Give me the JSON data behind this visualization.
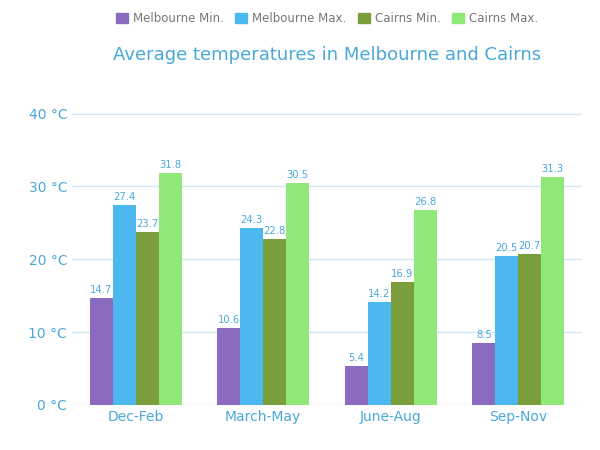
{
  "title": "Average temperatures in Melbourne and Cairns",
  "title_color": "#4aa8d8",
  "categories": [
    "Dec-Feb",
    "March-May",
    "June-Aug",
    "Sep-Nov"
  ],
  "series": [
    {
      "label": "Melbourne Min.",
      "color": "#8a6bbf",
      "values": [
        14.7,
        10.6,
        5.4,
        8.5
      ]
    },
    {
      "label": "Melbourne Max.",
      "color": "#4db8f0",
      "values": [
        27.4,
        24.3,
        14.2,
        20.5
      ]
    },
    {
      "label": "Cairns Min.",
      "color": "#7a9e3b",
      "values": [
        23.7,
        22.8,
        16.9,
        20.7
      ]
    },
    {
      "label": "Cairns Max.",
      "color": "#90e878",
      "values": [
        31.8,
        30.5,
        26.8,
        31.3
      ]
    }
  ],
  "ylim": [
    0,
    42
  ],
  "yticks": [
    0,
    10,
    20,
    30,
    40
  ],
  "ytick_labels": [
    "0 °C",
    "10 °C",
    "20 °C",
    "30 °C",
    "40 °C"
  ],
  "bar_width": 0.18,
  "background_color": "#ffffff",
  "grid_color": "#d0e8f5",
  "tick_label_color": "#4aa8d8",
  "category_label_color": "#4aa8d8",
  "value_label_color": "#4aa8d8",
  "legend_label_color": "#777777"
}
